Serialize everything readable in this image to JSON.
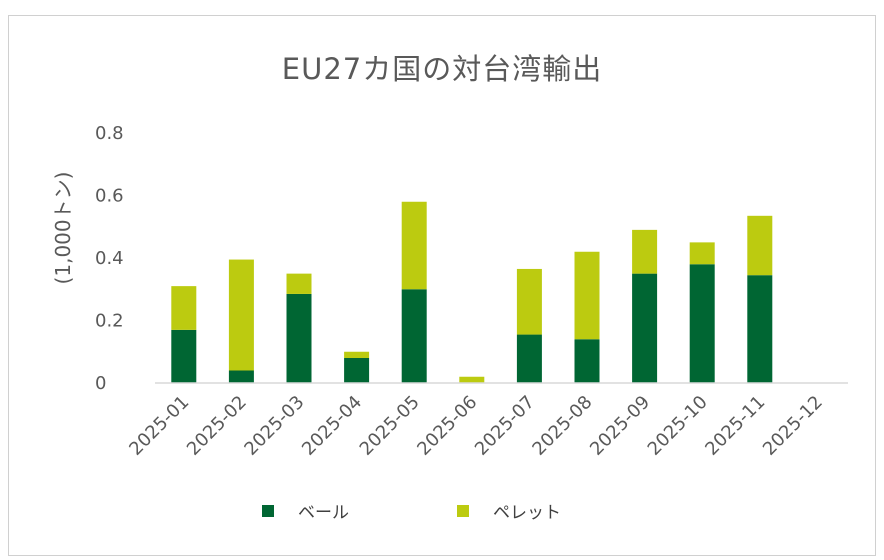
{
  "chart_data": {
    "type": "bar",
    "stacked": true,
    "title": "EU27カ国の対台湾輸出",
    "ylabel": "(1,000トン)",
    "xlabel": "",
    "ylim": [
      0,
      0.8
    ],
    "yticks": [
      "0",
      "0.2",
      "0.4",
      "0.6",
      "0.8"
    ],
    "categories": [
      "2025-01",
      "2025-02",
      "2025-03",
      "2025-04",
      "2025-05",
      "2025-06",
      "2025-07",
      "2025-08",
      "2025-09",
      "2025-10",
      "2025-11",
      "2025-12"
    ],
    "series": [
      {
        "name": "ベール",
        "color": "#006633",
        "values": [
          0.17,
          0.04,
          0.285,
          0.08,
          0.3,
          0.0,
          0.155,
          0.14,
          0.35,
          0.38,
          0.345,
          0.0
        ]
      },
      {
        "name": "ペレット",
        "color": "#bccb10",
        "values": [
          0.14,
          0.355,
          0.065,
          0.02,
          0.28,
          0.02,
          0.21,
          0.28,
          0.14,
          0.07,
          0.19,
          0.0
        ]
      }
    ],
    "grid": false,
    "legend": "bottom"
  }
}
